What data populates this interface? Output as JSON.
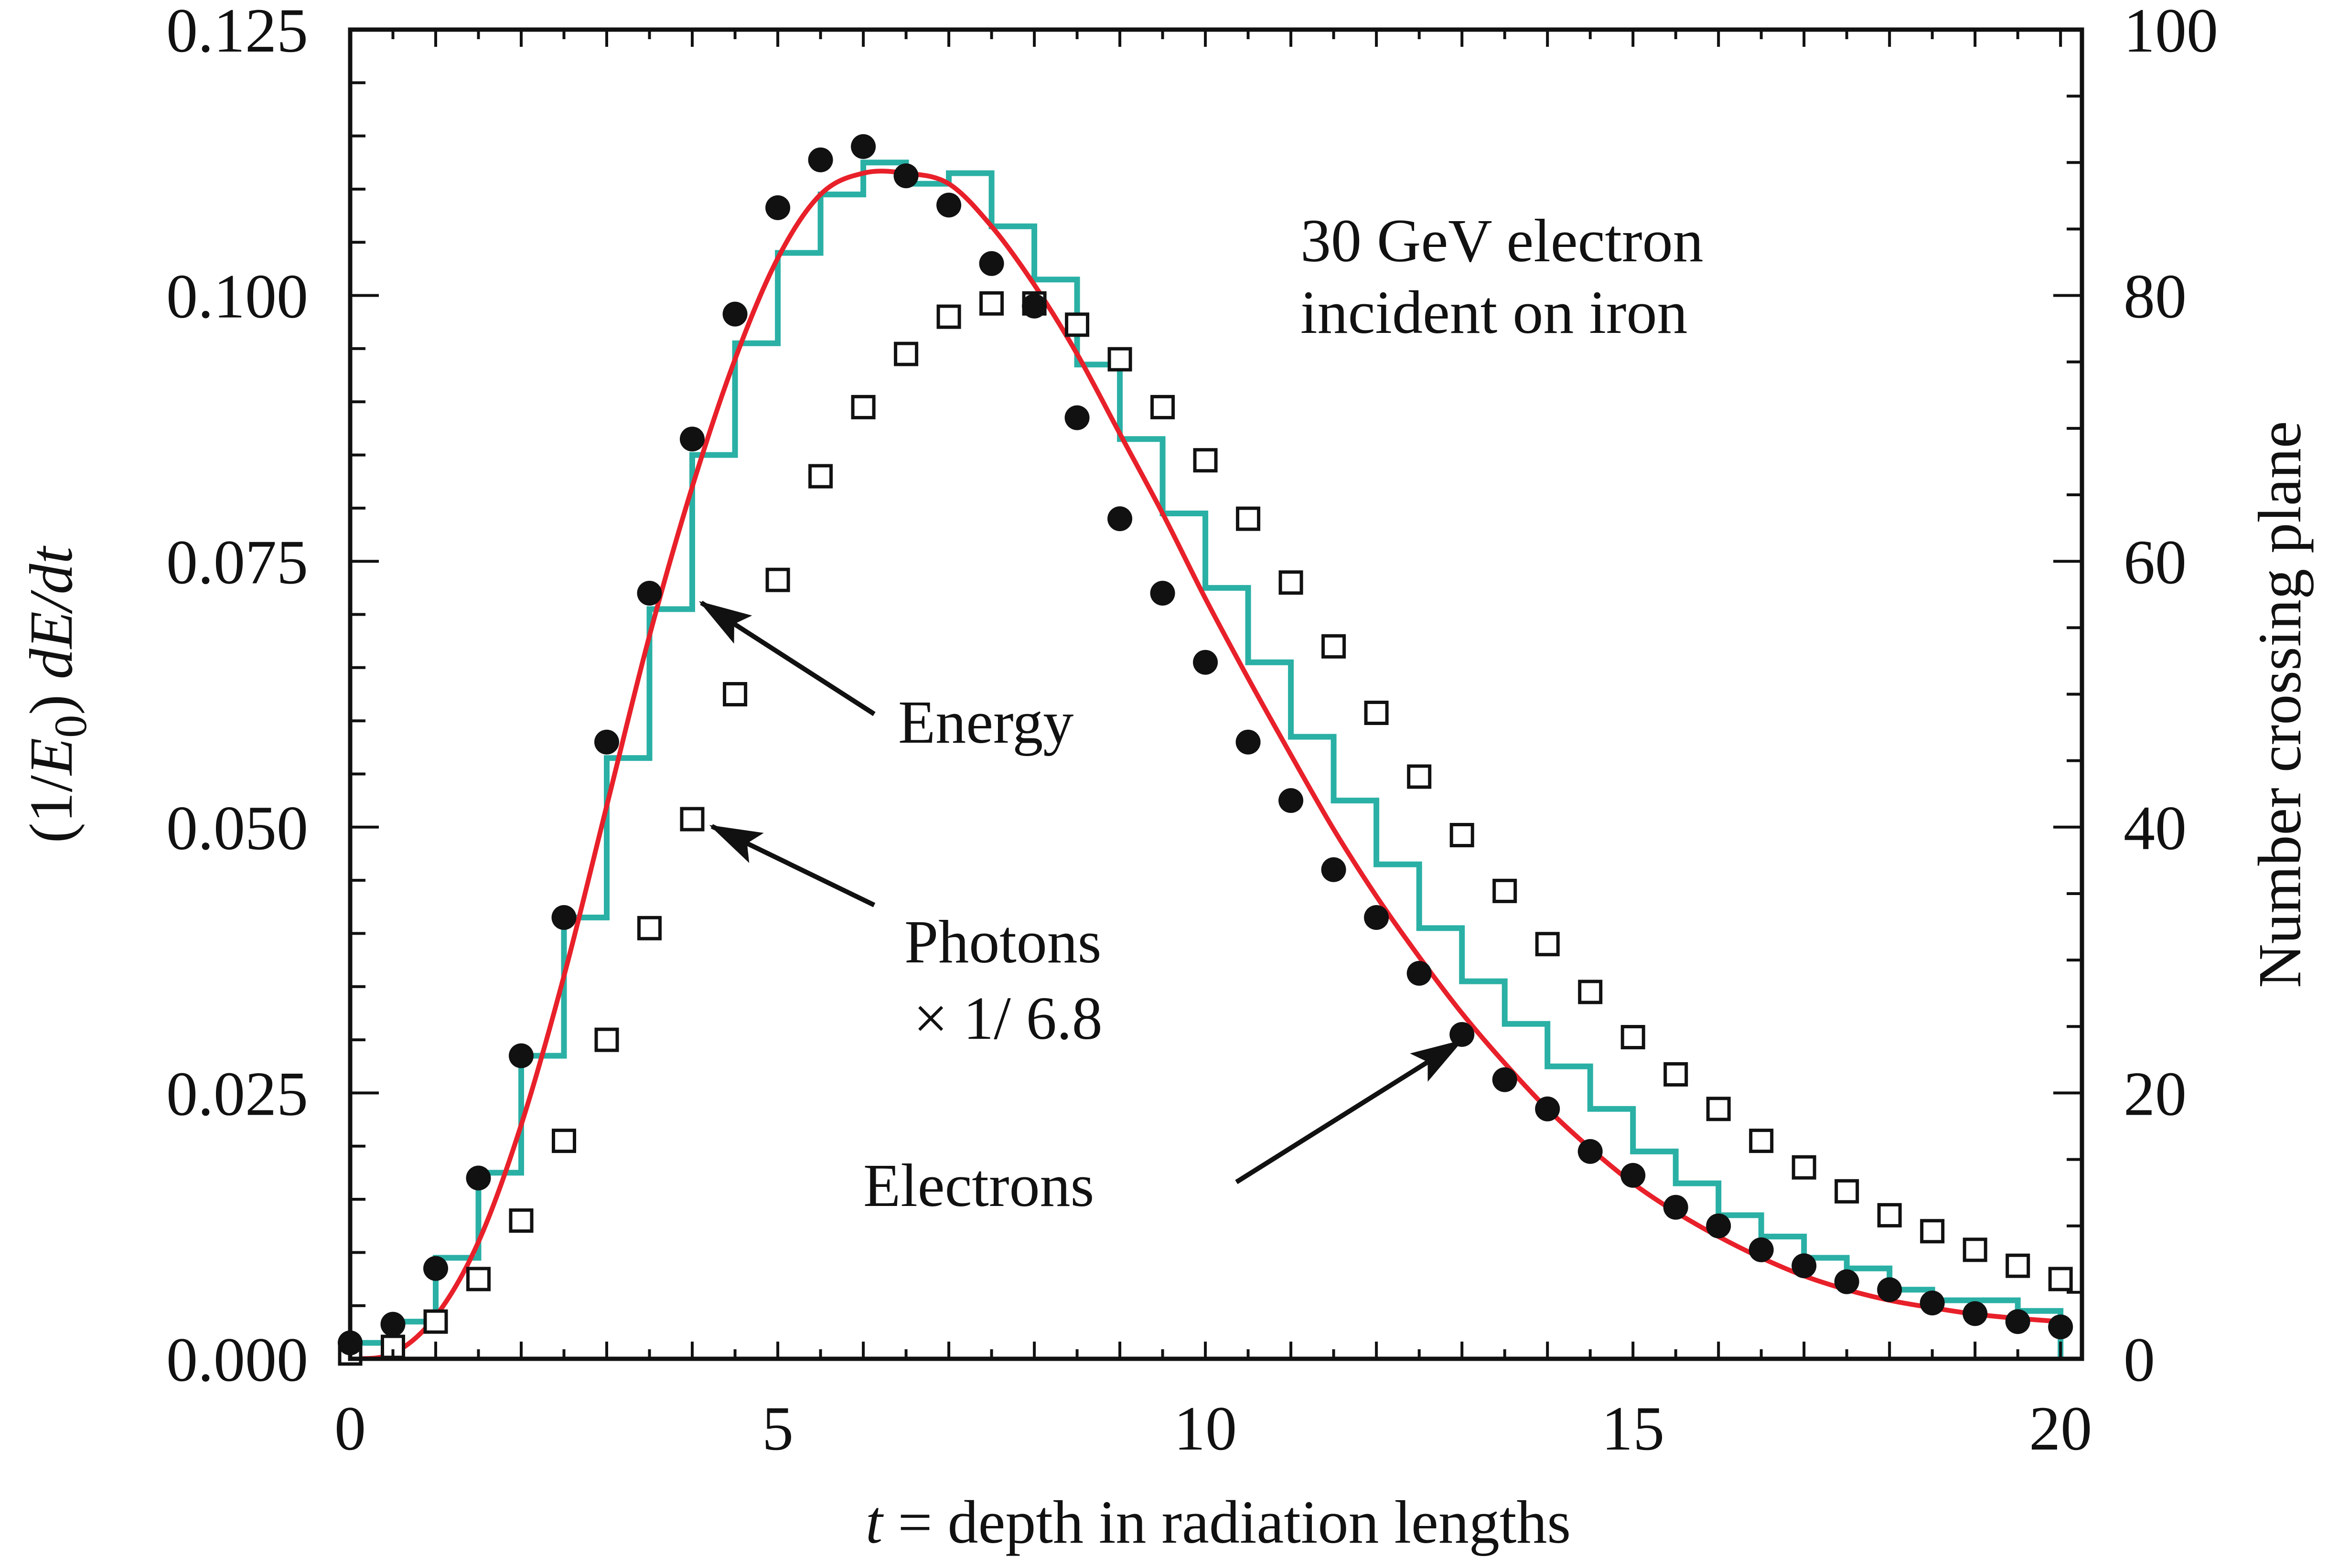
{
  "chart_data": {
    "type": "line",
    "annotation": [
      "30 GeV electron",
      "incident on iron"
    ],
    "xlabel": {
      "var": "t",
      "rest": " = depth in radiation lengths"
    },
    "ylabel": [
      "(1/",
      "E",
      "0",
      ") ",
      "dE/dt"
    ],
    "y2label": "Number crossing plane",
    "xlim": [
      0,
      20.25
    ],
    "ylim": [
      0,
      0.125
    ],
    "y2lim": [
      0,
      100
    ],
    "xticks": [
      0,
      5,
      10,
      15,
      20
    ],
    "xtick_labels": [
      "0",
      "5",
      "10",
      "15",
      "20"
    ],
    "yticks": [
      0,
      0.025,
      0.05,
      0.075,
      0.1,
      0.125
    ],
    "ytick_labels": [
      "0.000",
      "0.025",
      "0.050",
      "0.075",
      "0.100",
      "0.125"
    ],
    "y2ticks": [
      0,
      20,
      40,
      60,
      80,
      100
    ],
    "y2tick_labels": [
      "0",
      "20",
      "40",
      "60",
      "80",
      "100"
    ],
    "grid": false,
    "colors": {
      "histogram": "#2AB0A5",
      "curve": "#E8202A",
      "markers": "#111111"
    },
    "labels": {
      "energy": "Energy",
      "photons": "Photons",
      "photons_scale": "× 1/ 6.8",
      "electrons": "Electrons"
    },
    "series": [
      {
        "name": "Energy",
        "kind": "histogram",
        "axis": "left",
        "bin_width": 0.5,
        "x": [
          0,
          0.5,
          1,
          1.5,
          2,
          2.5,
          3,
          3.5,
          4,
          4.5,
          5,
          5.5,
          6,
          6.5,
          7,
          7.5,
          8,
          8.5,
          9,
          9.5,
          10,
          10.5,
          11,
          11.5,
          12,
          12.5,
          13,
          13.5,
          14,
          14.5,
          15,
          15.5,
          16,
          16.5,
          17,
          17.5,
          18,
          18.5,
          19,
          19.5
        ],
        "y": [
          0.0015,
          0.0035,
          0.0095,
          0.0175,
          0.0285,
          0.0415,
          0.0565,
          0.0705,
          0.085,
          0.0955,
          0.104,
          0.1095,
          0.1125,
          0.1105,
          0.1115,
          0.1065,
          0.1015,
          0.0935,
          0.0865,
          0.0795,
          0.0725,
          0.0655,
          0.0585,
          0.0525,
          0.0465,
          0.0405,
          0.0355,
          0.0315,
          0.0275,
          0.0235,
          0.0195,
          0.0165,
          0.0135,
          0.0115,
          0.0095,
          0.0085,
          0.0065,
          0.0055,
          0.0055,
          0.0045
        ]
      },
      {
        "name": "Fit curve",
        "kind": "curve",
        "axis": "left",
        "x": [
          0,
          0.5,
          1,
          1.5,
          2,
          2.5,
          3,
          3.5,
          4,
          4.5,
          5,
          5.5,
          6,
          6.5,
          7,
          7.5,
          8,
          8.5,
          9,
          9.5,
          10,
          10.5,
          11,
          11.5,
          12,
          12.5,
          13,
          13.5,
          14,
          14.5,
          15,
          15.5,
          16,
          16.5,
          17,
          17.5,
          18,
          18.5,
          19,
          19.5,
          20
        ],
        "y": [
          0.0,
          0.0005,
          0.004,
          0.011,
          0.022,
          0.036,
          0.052,
          0.068,
          0.082,
          0.094,
          0.1035,
          0.1095,
          0.1115,
          0.1115,
          0.1105,
          0.1065,
          0.101,
          0.0945,
          0.087,
          0.0795,
          0.0715,
          0.064,
          0.0568,
          0.0498,
          0.0435,
          0.0378,
          0.0325,
          0.0278,
          0.0235,
          0.0198,
          0.0165,
          0.0138,
          0.0115,
          0.0095,
          0.0078,
          0.0065,
          0.0055,
          0.0048,
          0.0042,
          0.0038,
          0.0035
        ]
      },
      {
        "name": "Electrons",
        "kind": "scatter",
        "marker": "filled-circle",
        "axis": "right",
        "x": [
          0,
          0.5,
          1,
          1.5,
          2,
          2.5,
          3,
          3.5,
          4,
          4.5,
          5,
          5.5,
          6,
          6.5,
          7,
          7.5,
          8,
          8.5,
          9,
          9.5,
          10,
          10.5,
          11,
          11.5,
          12,
          12.5,
          13,
          13.5,
          14,
          14.5,
          15,
          15.5,
          16,
          16.5,
          17,
          17.5,
          18,
          18.5,
          19,
          19.5,
          20
        ],
        "y": [
          1.2,
          2.6,
          6.8,
          13.6,
          22.8,
          33.2,
          46.4,
          57.6,
          69.2,
          78.6,
          86.6,
          90.2,
          91.2,
          89.0,
          86.8,
          82.4,
          79.2,
          70.8,
          63.2,
          57.6,
          52.4,
          46.4,
          42.0,
          36.8,
          33.2,
          29.0,
          24.4,
          21.0,
          18.8,
          15.6,
          13.8,
          11.4,
          10.0,
          8.2,
          7.0,
          5.8,
          5.2,
          4.2,
          3.4,
          2.8,
          2.4
        ]
      },
      {
        "name": "Photons",
        "kind": "scatter",
        "marker": "open-square",
        "axis": "right",
        "x": [
          0,
          0.5,
          1,
          1.5,
          2,
          2.5,
          3,
          3.5,
          4,
          4.5,
          5,
          5.5,
          6,
          6.5,
          7,
          7.5,
          8,
          8.5,
          9,
          9.5,
          10,
          10.5,
          11,
          11.5,
          12,
          12.5,
          13,
          13.5,
          14,
          14.5,
          15,
          15.5,
          16,
          16.5,
          17,
          17.5,
          18,
          18.5,
          19,
          19.5,
          20
        ],
        "y": [
          0.4,
          0.9,
          2.8,
          6.0,
          10.4,
          16.4,
          24.0,
          32.4,
          40.6,
          50.0,
          58.6,
          66.4,
          71.6,
          75.6,
          78.4,
          79.4,
          79.4,
          77.8,
          75.2,
          71.6,
          67.6,
          63.2,
          58.4,
          53.6,
          48.6,
          43.8,
          39.4,
          35.2,
          31.2,
          27.6,
          24.2,
          21.4,
          18.8,
          16.4,
          14.4,
          12.6,
          10.8,
          9.6,
          8.2,
          7.0,
          6.0
        ]
      }
    ]
  }
}
